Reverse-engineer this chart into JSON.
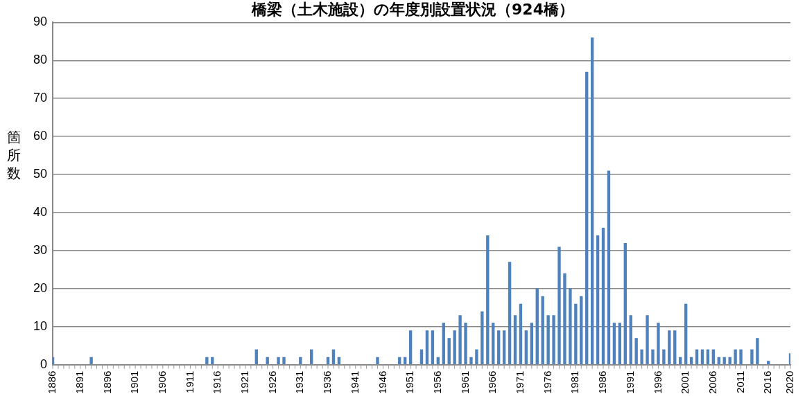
{
  "chart_data": {
    "type": "bar",
    "title": "橋梁（土木施設）の年度別設置状況（924橋）",
    "ylabel": "箇所数",
    "categories": [
      "1886",
      null,
      null,
      null,
      null,
      "1891",
      null,
      null,
      null,
      null,
      "1896",
      null,
      null,
      null,
      null,
      "1901",
      null,
      null,
      null,
      null,
      "1906",
      null,
      null,
      null,
      null,
      "1911",
      null,
      null,
      null,
      null,
      "1916",
      null,
      null,
      null,
      null,
      "1921",
      null,
      null,
      null,
      null,
      "1926",
      null,
      null,
      null,
      null,
      "1931",
      null,
      null,
      null,
      null,
      "1936",
      null,
      null,
      null,
      null,
      "1941",
      null,
      null,
      null,
      null,
      "1946",
      null,
      null,
      null,
      null,
      "1951",
      null,
      null,
      null,
      null,
      "1956",
      null,
      null,
      null,
      null,
      "1961",
      null,
      null,
      null,
      null,
      "1966",
      null,
      null,
      null,
      null,
      "1971",
      null,
      null,
      null,
      null,
      "1976",
      null,
      null,
      null,
      null,
      "1981",
      null,
      null,
      null,
      null,
      "1986",
      null,
      null,
      null,
      null,
      "1991",
      null,
      null,
      null,
      null,
      "1996",
      null,
      null,
      null,
      null,
      "2001",
      null,
      null,
      null,
      null,
      "2006",
      null,
      null,
      null,
      null,
      "2011",
      null,
      null,
      null,
      null,
      "2016",
      null,
      null,
      null,
      "2020"
    ],
    "values": [
      2,
      0,
      0,
      0,
      0,
      0,
      0,
      2,
      0,
      0,
      0,
      0,
      0,
      0,
      0,
      0,
      0,
      0,
      0,
      0,
      0,
      0,
      0,
      0,
      0,
      0,
      0,
      0,
      2,
      2,
      0,
      0,
      0,
      0,
      0,
      0,
      0,
      4,
      0,
      2,
      0,
      2,
      2,
      0,
      0,
      2,
      0,
      4,
      0,
      0,
      2,
      4,
      2,
      0,
      0,
      0,
      0,
      0,
      0,
      2,
      0,
      0,
      0,
      2,
      2,
      9,
      0,
      4,
      9,
      9,
      2,
      11,
      7,
      9,
      13,
      11,
      2,
      4,
      14,
      34,
      11,
      9,
      9,
      27,
      13,
      16,
      9,
      11,
      20,
      18,
      13,
      13,
      31,
      24,
      20,
      16,
      18,
      77,
      86,
      34,
      36,
      51,
      11,
      11,
      32,
      13,
      7,
      4,
      13,
      4,
      11,
      4,
      9,
      9,
      2,
      16,
      2,
      4,
      4,
      4,
      4,
      2,
      2,
      2,
      4,
      4,
      0,
      4,
      7,
      0,
      1,
      0,
      0,
      0,
      3
    ],
    "color": "#4f81bd",
    "ylim": [
      0,
      90
    ],
    "yticks": [
      0,
      10,
      20,
      30,
      40,
      50,
      60,
      70,
      80,
      90
    ],
    "grid": "y",
    "legend": false
  }
}
